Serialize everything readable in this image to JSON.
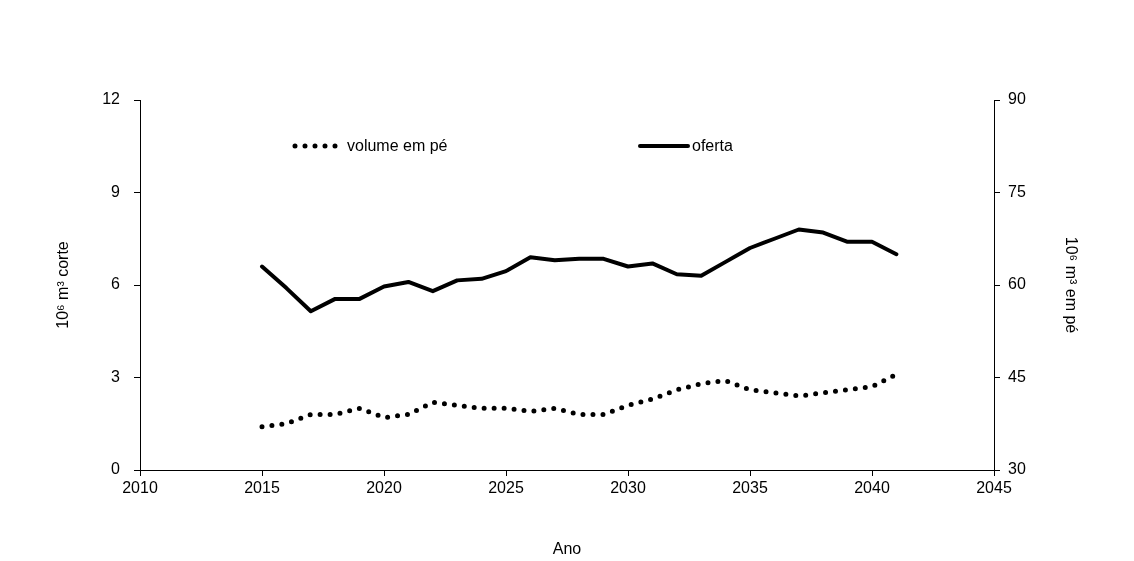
{
  "chart_data": {
    "type": "line",
    "xlabel": "Ano",
    "ylabel": "10⁶ m³ corte",
    "y2label": "10⁶ m³ em pé",
    "x": [
      2015,
      2016,
      2017,
      2018,
      2019,
      2020,
      2021,
      2022,
      2023,
      2024,
      2025,
      2026,
      2027,
      2028,
      2029,
      2030,
      2031,
      2032,
      2033,
      2034,
      2035,
      2036,
      2037,
      2038,
      2039,
      2040,
      2041
    ],
    "series": [
      {
        "name": "volume em pé",
        "color": "#000000",
        "axis": "y2",
        "line_style": "dotted",
        "values": [
          37,
          37.5,
          39,
          39,
          40,
          38.5,
          39,
          41,
          40.5,
          40,
          40,
          39.5,
          40,
          39,
          39,
          40.5,
          41.5,
          43,
          44,
          44.5,
          43,
          42.5,
          42,
          42.5,
          43,
          43.5,
          45.5
        ]
      },
      {
        "name": "oferta",
        "color": "#000000",
        "line_style": "solid",
        "values": [
          6.6,
          5.9,
          5.15,
          5.55,
          5.55,
          5.95,
          6.1,
          5.8,
          6.15,
          6.2,
          6.45,
          6.9,
          6.8,
          6.85,
          6.85,
          6.6,
          6.7,
          6.35,
          6.3,
          6.75,
          7.2,
          7.5,
          7.8,
          7.7,
          7.4,
          7.4,
          7.0
        ]
      }
    ],
    "xlim": [
      2010,
      2045
    ],
    "xticks": [
      2010,
      2015,
      2020,
      2025,
      2030,
      2035,
      2040,
      2045
    ],
    "ylim": [
      0,
      12
    ],
    "yticks": [
      0,
      3,
      6,
      9,
      12
    ],
    "y2lim": [
      30,
      90
    ],
    "y2ticks": [
      30,
      45,
      60,
      75,
      90
    ],
    "grid": false,
    "legend": "top",
    "marker": "none"
  }
}
